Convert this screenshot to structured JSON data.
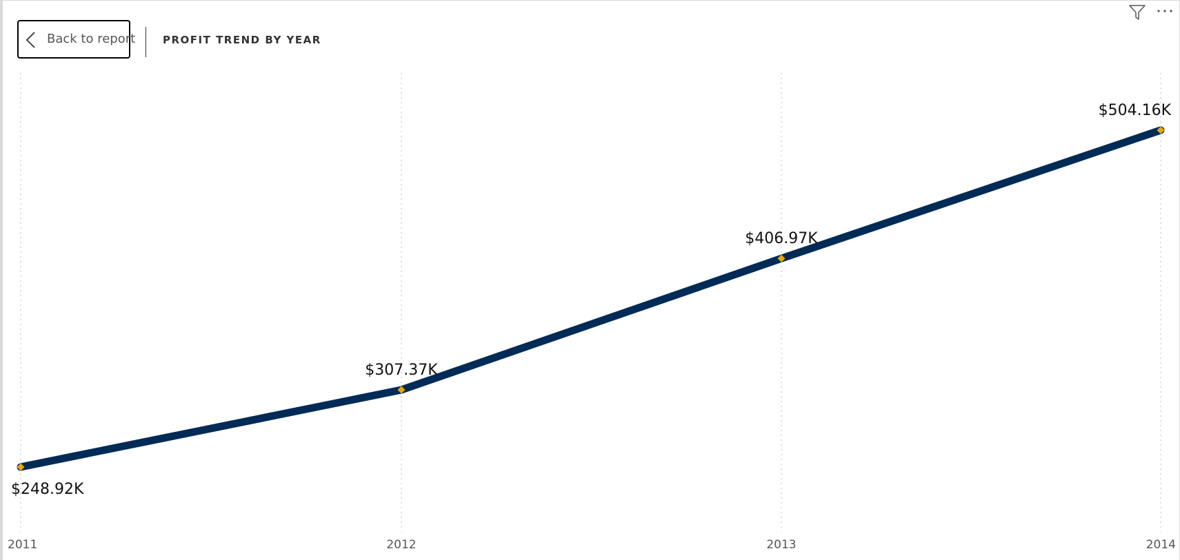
{
  "header": {
    "back_label": "Back to report",
    "title": "PROFIT TREND BY YEAR"
  },
  "icons": {
    "back": "chevron-left-icon",
    "filter": "filter-icon",
    "more": "more-options-icon"
  },
  "colors": {
    "line": "#002b57",
    "marker": "#e8a700",
    "gridline": "#c8c8c8"
  },
  "chart_data": {
    "type": "line",
    "categories": [
      "2011",
      "2012",
      "2013",
      "2014"
    ],
    "values": [
      248.92,
      307.37,
      406.97,
      504.16
    ],
    "data_labels": [
      "$248.92K",
      "$307.37K",
      "$406.97K",
      "$504.16K"
    ],
    "title": "PROFIT TREND BY YEAR",
    "xlabel": "",
    "ylabel": "",
    "ylim": [
      230,
      550
    ],
    "grid": "vertical-dotted",
    "legend": "none"
  }
}
